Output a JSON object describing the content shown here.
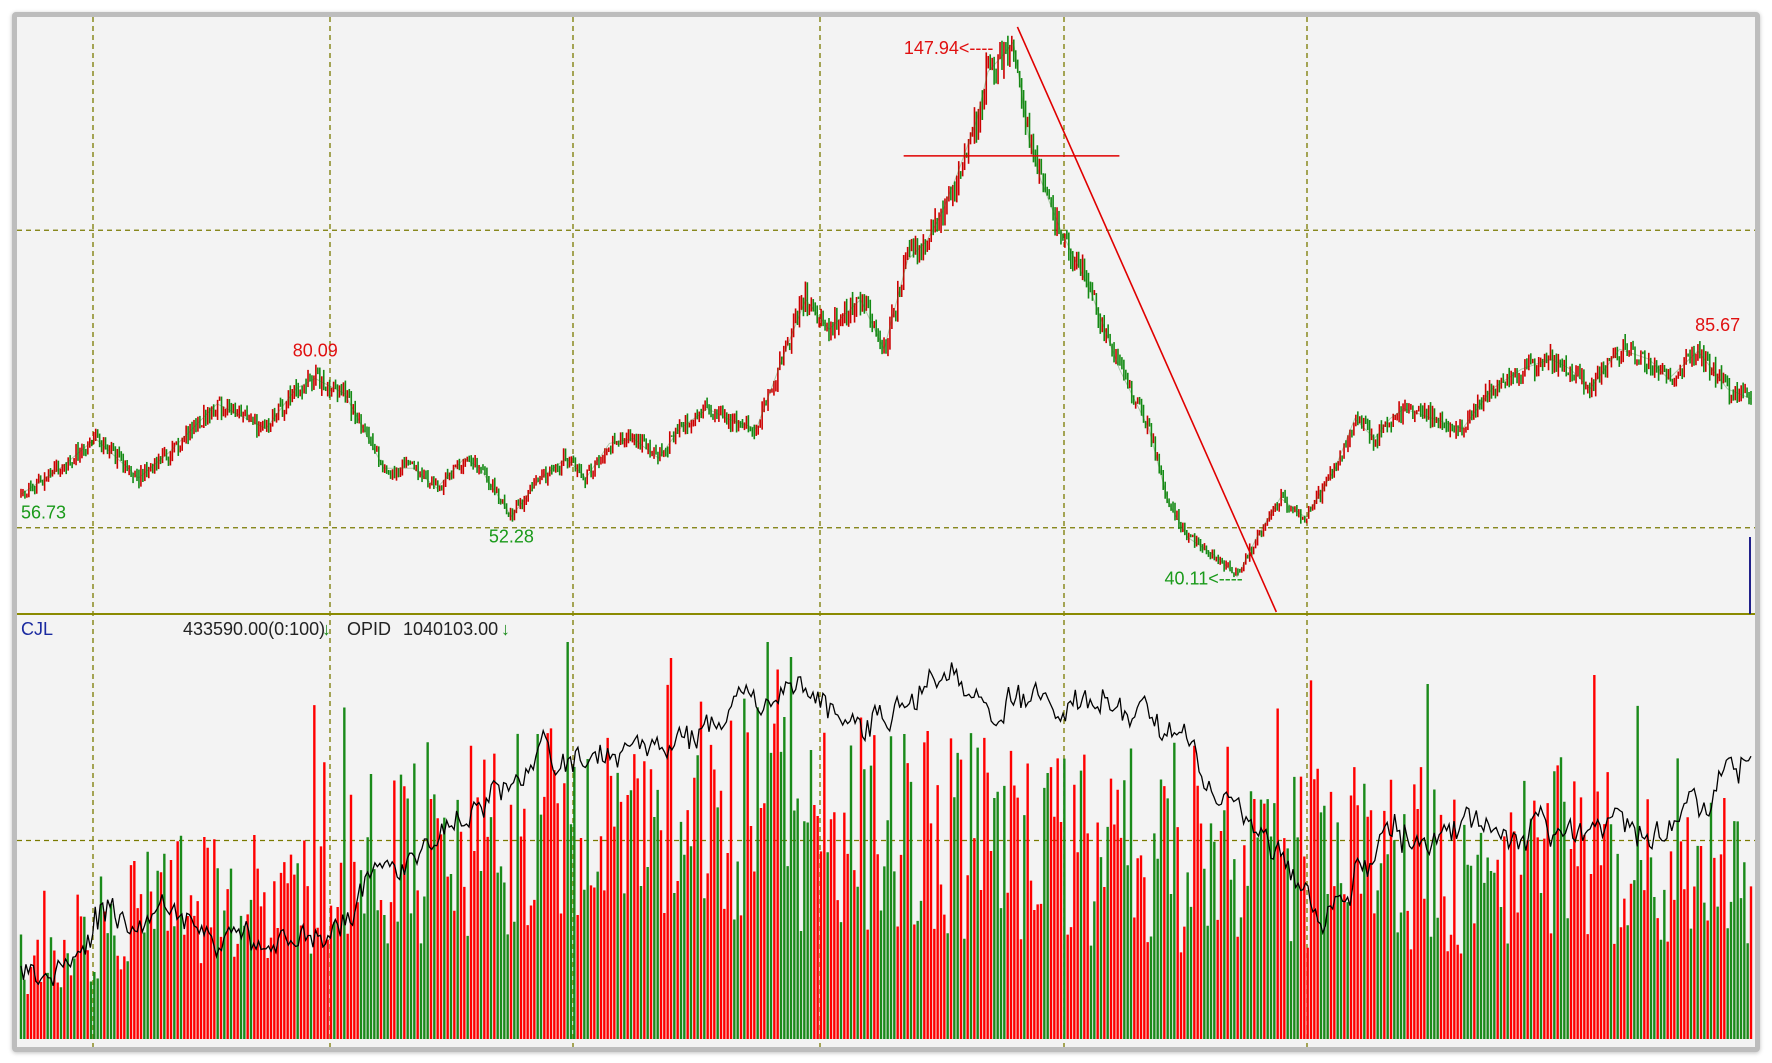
{
  "chart_data": [
    {
      "type": "line",
      "title": "",
      "colors": {
        "up": "#cc0000",
        "down": "#138a13",
        "annotation": "#e00000",
        "grid": "#7a7a00",
        "background": "#f3f3f3"
      },
      "y_gridlines": [
        110,
        50
      ],
      "ylim": [
        33,
        152
      ],
      "grid": true,
      "x": [
        0,
        20,
        38,
        60,
        75,
        100,
        125,
        140,
        150,
        165,
        185,
        200,
        212,
        226,
        234,
        250,
        265,
        278,
        288,
        300,
        312,
        325,
        336,
        350,
        360,
        375,
        390,
        400,
        412,
        428,
        440,
        452,
        462,
        470,
        478,
        487,
        493,
        500,
        506,
        510,
        514,
        520,
        530,
        545,
        560,
        575,
        585,
        595,
        610,
        620,
        630,
        642,
        655,
        670,
        680,
        690,
        698,
        705,
        720,
        735,
        750,
        765,
        780,
        790,
        800,
        815,
        830,
        840,
        855,
        870,
        882
      ],
      "close": [
        56.73,
        62,
        68,
        60,
        65,
        75,
        70,
        78,
        80.09,
        77,
        62,
        62,
        58,
        64,
        62,
        52.28,
        60,
        64,
        60,
        67,
        68,
        64,
        70,
        74,
        72,
        70,
        86,
        96,
        90,
        96,
        86,
        104,
        108,
        114,
        122,
        132,
        142,
        145,
        147.94,
        138,
        128,
        120,
        110,
        98,
        82,
        70,
        55,
        48,
        44,
        40.11,
        48,
        56,
        52,
        62,
        72,
        68,
        72,
        74,
        72,
        70,
        78,
        82,
        84,
        82,
        78,
        86,
        84,
        80,
        85.67,
        78,
        76
      ],
      "labels": [
        {
          "text": "56.73",
          "type": "low"
        },
        {
          "text": "80.09",
          "type": "high"
        },
        {
          "text": "52.28",
          "type": "low"
        },
        {
          "text": "147.94<----",
          "type": "high"
        },
        {
          "text": "40.11<----",
          "type": "low"
        },
        {
          "text": "85.67",
          "type": "high"
        }
      ],
      "annotations": {
        "trendline": {
          "from": [
            508,
            151
          ],
          "to": [
            640,
            33
          ]
        },
        "support_line": {
          "from": [
            450,
            125
          ],
          "to": [
            560,
            125
          ]
        }
      }
    },
    {
      "type": "bar",
      "indicator": "CJL",
      "legend": [
        {
          "value_text": "433590.00(0:100)",
          "arrow": "↓"
        },
        {
          "name": "OPID",
          "value_text": "1040103.00",
          "arrow": "↓"
        }
      ],
      "colors": {
        "up": "#ff0000",
        "down": "#1a8a1a",
        "line": "#000000"
      },
      "ylim": [
        0,
        100
      ],
      "y_gridlines": [
        50
      ],
      "volume_profile": [
        20,
        30,
        38,
        42,
        50,
        55,
        60,
        58,
        62,
        60,
        58,
        55,
        52,
        50,
        45,
        50,
        48,
        45,
        50,
        46,
        44
      ],
      "opid_profile": [
        15,
        32,
        32,
        20,
        35,
        55,
        72,
        70,
        82,
        88,
        82,
        90,
        84,
        82,
        58,
        35,
        50,
        55,
        50,
        55,
        72
      ]
    }
  ]
}
